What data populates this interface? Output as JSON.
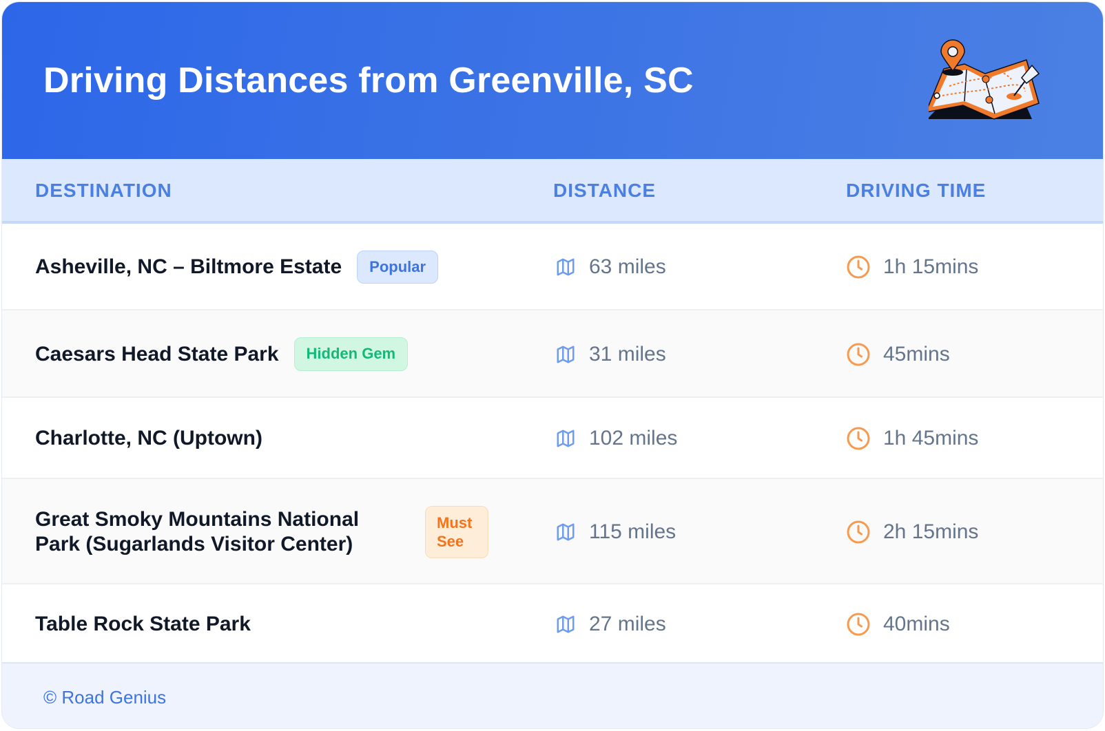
{
  "header": {
    "title": "Driving Distances from Greenville, SC",
    "illustration": "map-with-pins"
  },
  "columns": {
    "destination": "DESTINATION",
    "distance": "DISTANCE",
    "time": "DRIVING TIME"
  },
  "rows": [
    {
      "name": "Asheville, NC – Biltmore Estate",
      "badge": "Popular",
      "badge_color": "#3d74e0",
      "distance": "63 miles",
      "time": "1h 15mins"
    },
    {
      "name": "Caesars Head State Park",
      "badge": "Hidden Gem",
      "badge_color": "#15b87a",
      "distance": "31 miles",
      "time": "45mins"
    },
    {
      "name": "Charlotte, NC (Uptown)",
      "distance": "102 miles",
      "time": "1h 45mins"
    },
    {
      "name": "Great Smoky Mountains National Park (Sugarlands Visitor Center)",
      "badge": "Must See",
      "badge_color": "#f5731c",
      "distance": "115 miles",
      "time": "2h 15mins"
    },
    {
      "name": "Table Rock State Park",
      "distance": "27 miles",
      "time": "40mins"
    }
  ],
  "icons": {
    "distance": "map-icon",
    "time": "clock-icon"
  },
  "colors": {
    "header": "#2d67e8",
    "accent": "#4a7fe3",
    "clock": "#f59a4e"
  },
  "footer": {
    "credit": "© Road Genius"
  }
}
